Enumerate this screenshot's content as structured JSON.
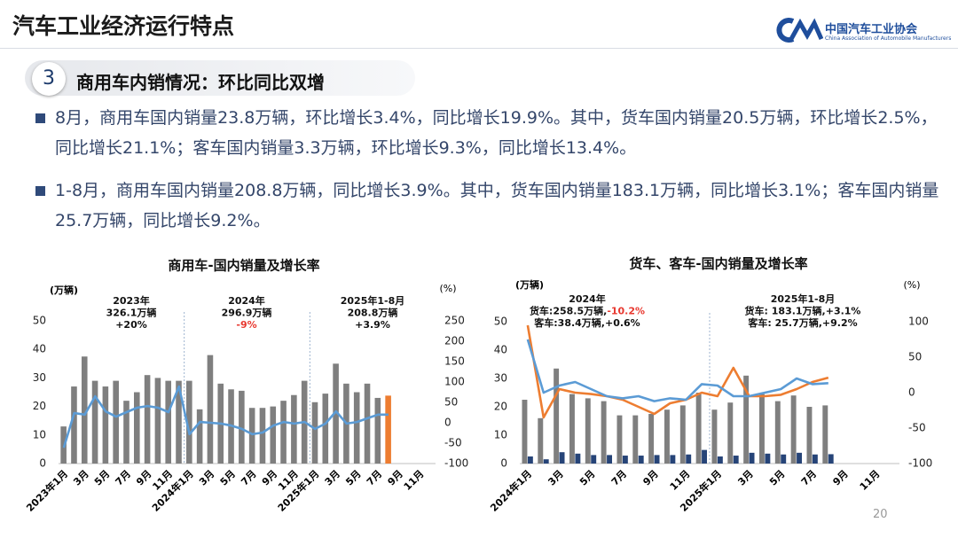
{
  "header": {
    "title": "汽车工业经济运行特点",
    "logo_text": "中国汽车工业协会",
    "logo_subtext": "China Association of Automobile Manufacturers"
  },
  "section": {
    "number": "3",
    "title": "商用车内销情况：环比同比双增"
  },
  "bullets": [
    "8月，商用车国内销量23.8万辆，环比增长3.4%，同比增长19.9%。其中，货车国内销量20.5万辆，环比增长2.5%，同比增长21.1%；客车国内销量3.3万辆，环比增长9.3%，同比增长13.4%。",
    "1-8月，商用车国内销量208.8万辆，同比增长3.9%。其中，货车国内销量183.1万辆，同比增长3.1%；客车国内销量25.7万辆，同比增长9.2%。"
  ],
  "page_number": "20",
  "chart_data": [
    {
      "type": "combo",
      "title": "商用车-国内销量及增长率",
      "y_label": "(万辆)",
      "y2_label": "(%)",
      "categories": [
        "2023年1月",
        null,
        "3月",
        null,
        "5月",
        null,
        "7月",
        null,
        "9月",
        null,
        "11月",
        null,
        "2024年1月",
        null,
        "3月",
        null,
        "5月",
        null,
        "7月",
        null,
        "9月",
        null,
        "11月",
        null,
        "2025年1月",
        null,
        "3月",
        null,
        "5月",
        null,
        "7月",
        null,
        "9月",
        null,
        "11月",
        null
      ],
      "ylim": [
        0,
        50
      ],
      "yticks": [
        0,
        10,
        20,
        30,
        40,
        50
      ],
      "y2lim": [
        -100,
        250
      ],
      "y2ticks": [
        -100,
        -50,
        0,
        50,
        100,
        150,
        200,
        250
      ],
      "series": [
        {
          "type": "bar",
          "color": "#7f7f7f",
          "values": [
            13,
            27,
            37.5,
            29,
            27,
            29,
            22,
            25,
            31,
            30,
            29,
            29,
            29,
            19,
            38,
            28,
            26,
            25.5,
            19.5,
            19.5,
            20,
            22,
            24,
            29,
            21.5,
            24.5,
            35,
            28,
            25,
            28,
            23,
            23.8,
            null,
            null,
            null,
            null
          ],
          "colors": [
            null,
            null,
            null,
            null,
            null,
            null,
            null,
            null,
            null,
            null,
            null,
            null,
            null,
            null,
            null,
            null,
            null,
            null,
            null,
            null,
            null,
            null,
            null,
            null,
            null,
            null,
            null,
            null,
            null,
            null,
            null,
            "#ed7d31",
            null,
            null,
            null,
            null
          ]
        },
        {
          "type": "line",
          "axis": "y2",
          "color": "#5b9bd5",
          "values": [
            -61,
            24,
            20,
            65,
            28,
            15,
            26,
            37,
            41,
            37,
            26,
            89,
            -28,
            2,
            0,
            -2,
            -7,
            -15,
            -28,
            -24,
            -7,
            2,
            -2,
            2,
            -15,
            -2,
            28,
            -2,
            2,
            11,
            20,
            19.9,
            null,
            null,
            null,
            null
          ]
        }
      ],
      "annotations": [
        {
          "lines": [
            [
              {
                "text": "2023年"
              }
            ],
            [
              {
                "text": "326.1万辆"
              }
            ],
            [
              {
                "text": "+20%"
              }
            ]
          ]
        },
        {
          "lines": [
            [
              {
                "text": "2024年"
              }
            ],
            [
              {
                "text": "296.9万辆"
              }
            ],
            [
              {
                "text": "-9%",
                "color": "#e8382f"
              }
            ]
          ]
        },
        {
          "lines": [
            [
              {
                "text": "2025年1-8月"
              }
            ],
            [
              {
                "text": "208.8万辆"
              }
            ],
            [
              {
                "text": "+3.9%"
              }
            ]
          ]
        }
      ]
    },
    {
      "type": "combo",
      "title": "货车、客车-国内销量及增长率",
      "y_label": "(万辆)",
      "y2_label": "(%)",
      "categories": [
        "2024年1月",
        null,
        "3月",
        null,
        "5月",
        null,
        "7月",
        null,
        "9月",
        null,
        "11月",
        null,
        "2025年1月",
        null,
        "3月",
        null,
        "5月",
        null,
        "7月",
        null,
        "9月",
        null,
        "11月",
        null
      ],
      "ylim": [
        0,
        50
      ],
      "yticks": [
        0,
        10,
        20,
        30,
        40,
        50
      ],
      "y2lim": [
        -100,
        100
      ],
      "y2ticks": [
        -100,
        -50,
        0,
        50,
        100
      ],
      "series": [
        {
          "type": "bar",
          "color": "#7f7f7f",
          "values": [
            22.5,
            16,
            33.5,
            24.5,
            23,
            22,
            17,
            17,
            17.5,
            19,
            20.5,
            25,
            19,
            21.5,
            31,
            24.5,
            22,
            24,
            20,
            20.5,
            null,
            null,
            null,
            null
          ]
        },
        {
          "type": "bar",
          "color": "#264478",
          "values": [
            2.5,
            1.5,
            4,
            3.5,
            3,
            3,
            2.8,
            2.8,
            3,
            3,
            3.2,
            4.8,
            2.5,
            2.8,
            3.8,
            3.5,
            3.2,
            3.8,
            3.2,
            3.3,
            null,
            null,
            null,
            null
          ]
        },
        {
          "type": "line",
          "axis": "y2",
          "color": "#ed7d31",
          "values": [
            95,
            -35,
            5,
            0,
            -2,
            -5,
            -10,
            -20,
            -30,
            -15,
            -10,
            0,
            -5,
            35,
            -5,
            -5,
            -3,
            5,
            15,
            21.1,
            null,
            null,
            null,
            null
          ]
        },
        {
          "type": "line",
          "axis": "y2",
          "color": "#5b9bd5",
          "values": [
            75,
            0,
            10,
            15,
            5,
            -5,
            -8,
            -5,
            -12,
            -8,
            -10,
            12,
            10,
            -5,
            -5,
            0,
            5,
            20,
            12,
            13.4,
            null,
            null,
            null,
            null
          ]
        }
      ],
      "annotations": [
        {
          "lines": [
            [
              {
                "text": "2024年"
              }
            ],
            [
              {
                "text": "货车:258.5万辆,"
              },
              {
                "text": "-10.2%",
                "color": "#e8382f"
              }
            ],
            [
              {
                "text": "客车:38.4万辆,+0.6%"
              }
            ]
          ]
        },
        {
          "lines": [
            [
              {
                "text": "2025年1-8月"
              }
            ],
            [
              {
                "text": "货车: 183.1万辆,+3.1%"
              }
            ],
            [
              {
                "text": "客车: 25.7万辆,+9.2%"
              }
            ]
          ]
        }
      ]
    }
  ]
}
